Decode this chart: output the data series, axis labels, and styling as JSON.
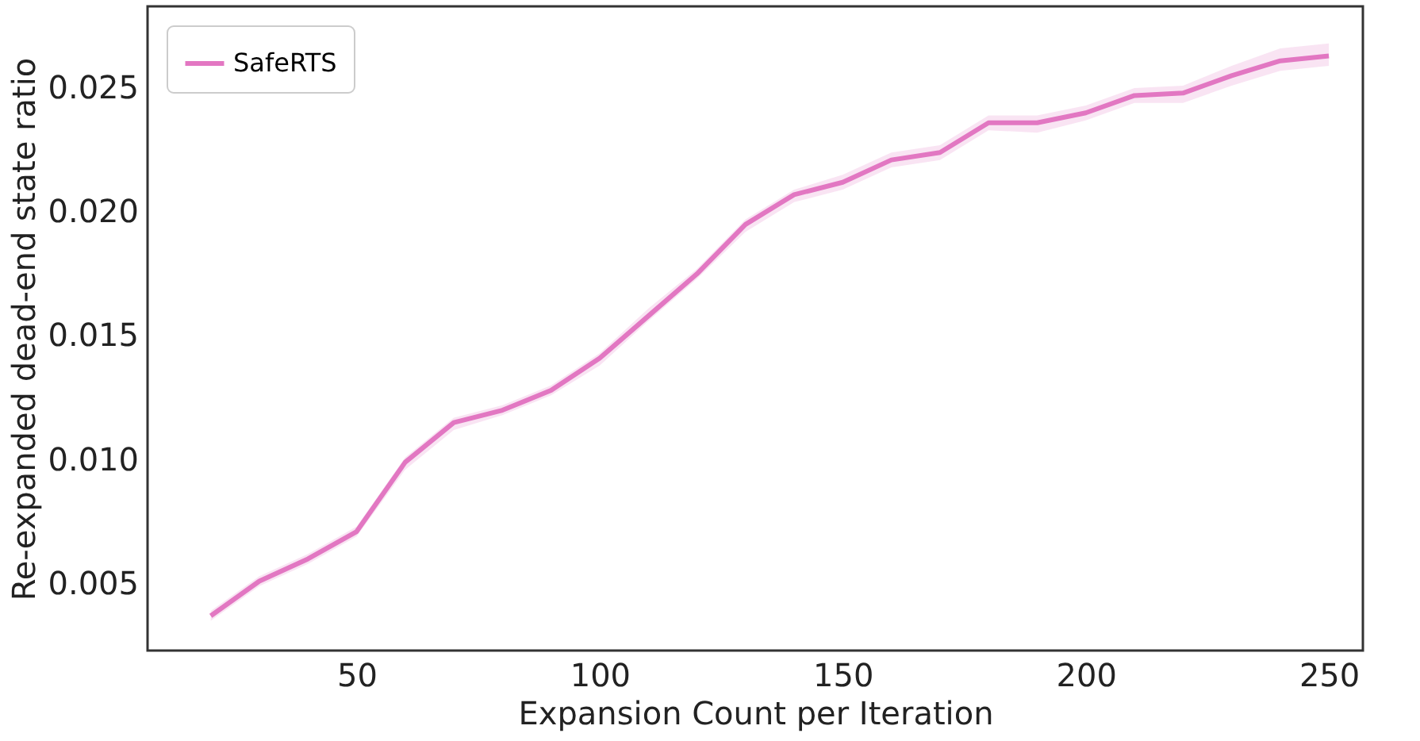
{
  "chart_data": {
    "type": "line",
    "xlabel": "Expansion Count per Iteration",
    "ylabel": "Re-expanded dead-end state ratio",
    "x": [
      20,
      30,
      40,
      50,
      60,
      70,
      80,
      90,
      100,
      110,
      120,
      130,
      140,
      150,
      160,
      170,
      180,
      190,
      200,
      210,
      220,
      230,
      240,
      250
    ],
    "series": [
      {
        "name": "SafeRTS",
        "color": "#e377c2",
        "values": [
          0.0037,
          0.0051,
          0.006,
          0.0071,
          0.0099,
          0.0115,
          0.012,
          0.0128,
          0.0141,
          0.0158,
          0.0175,
          0.0195,
          0.0207,
          0.0212,
          0.0221,
          0.0224,
          0.0236,
          0.0236,
          0.024,
          0.0247,
          0.0248,
          0.0255,
          0.0261,
          0.0263
        ],
        "lower": [
          0.0035,
          0.0049,
          0.0058,
          0.0069,
          0.0096,
          0.0112,
          0.0118,
          0.0126,
          0.0138,
          0.0156,
          0.0173,
          0.0192,
          0.0204,
          0.0209,
          0.0218,
          0.0221,
          0.0233,
          0.0232,
          0.0237,
          0.0244,
          0.0244,
          0.0251,
          0.0257,
          0.0259
        ],
        "upper": [
          0.0039,
          0.0053,
          0.0062,
          0.0073,
          0.0101,
          0.0117,
          0.0122,
          0.013,
          0.0143,
          0.0161,
          0.0177,
          0.0197,
          0.0209,
          0.0215,
          0.0224,
          0.0227,
          0.0239,
          0.0239,
          0.0243,
          0.025,
          0.0251,
          0.0259,
          0.0266,
          0.0268
        ]
      }
    ],
    "xlim": [
      7,
      257
    ],
    "ylim": [
      0.0023,
      0.0283
    ],
    "xticks": [
      50,
      100,
      150,
      200,
      250
    ],
    "yticks": [
      {
        "value": 0.005,
        "label": "0.005"
      },
      {
        "value": 0.01,
        "label": "0.010"
      },
      {
        "value": 0.015,
        "label": "0.015"
      },
      {
        "value": 0.02,
        "label": "0.020"
      },
      {
        "value": 0.025,
        "label": "0.025"
      }
    ],
    "grid": false,
    "legend": "top left",
    "marker": "none",
    "line_style": "solid"
  }
}
